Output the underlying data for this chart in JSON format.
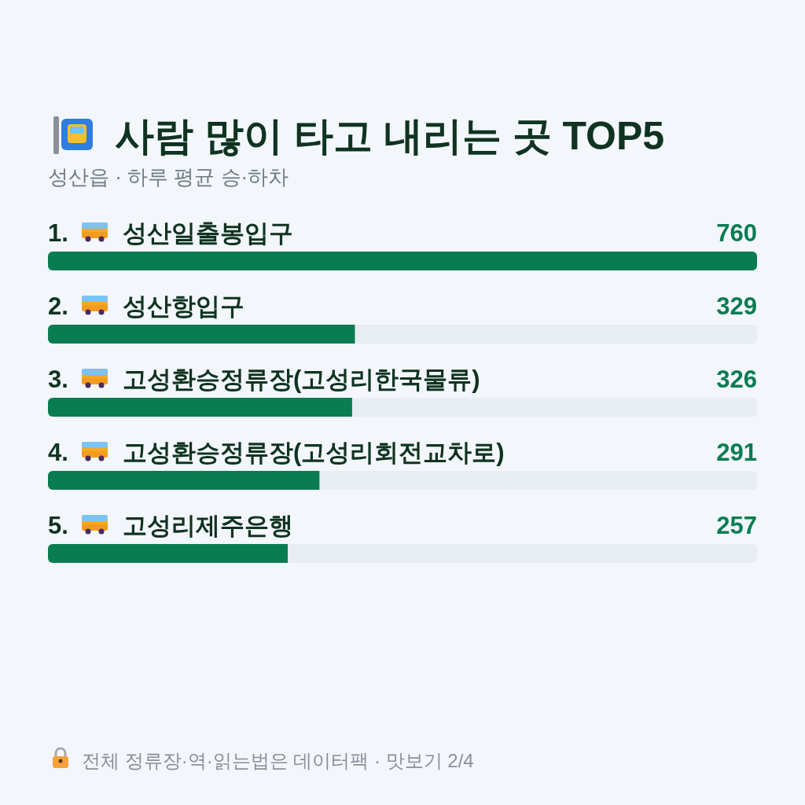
{
  "chart_data": {
    "type": "bar",
    "orientation": "horizontal",
    "title": "사람 많이 타고 내리는 곳 TOP5",
    "subtitle": "성산읍 · 하루 평균 승·하차",
    "categories": [
      "1. 성산일출봉입구",
      "2. 성산항입구",
      "3. 고성환승정류장(고성리한국물류)",
      "4. 고성환승정류장(고성리회전교차로)",
      "5. 고성리제주은행"
    ],
    "values": [
      760,
      329,
      326,
      291,
      257
    ],
    "color": "#0a7c52",
    "data_labels": true,
    "annotations": [
      "전체 정류장·역·읽는법은 데이터팩 · 맛보기 2/4"
    ]
  }
}
